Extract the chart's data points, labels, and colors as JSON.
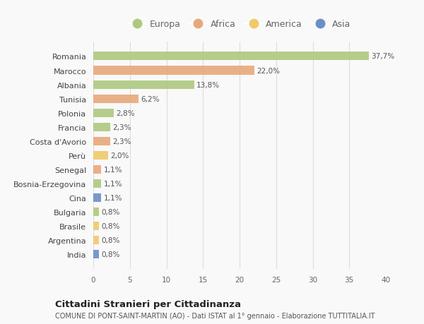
{
  "countries": [
    "Romania",
    "Marocco",
    "Albania",
    "Tunisia",
    "Polonia",
    "Francia",
    "Costa d'Avorio",
    "Perù",
    "Senegal",
    "Bosnia-Erzegovina",
    "Cina",
    "Bulgaria",
    "Brasile",
    "Argentina",
    "India"
  ],
  "values": [
    37.7,
    22.0,
    13.8,
    6.2,
    2.8,
    2.3,
    2.3,
    2.0,
    1.1,
    1.1,
    1.1,
    0.8,
    0.8,
    0.8,
    0.8
  ],
  "labels": [
    "37,7%",
    "22,0%",
    "13,8%",
    "6,2%",
    "2,8%",
    "2,3%",
    "2,3%",
    "2,0%",
    "1,1%",
    "1,1%",
    "1,1%",
    "0,8%",
    "0,8%",
    "0,8%",
    "0,8%"
  ],
  "continents": [
    "Europa",
    "Africa",
    "Europa",
    "Africa",
    "Europa",
    "Europa",
    "Africa",
    "America",
    "Africa",
    "Europa",
    "Asia",
    "Europa",
    "America",
    "America",
    "Asia"
  ],
  "continent_colors": {
    "Europa": "#aec97f",
    "Africa": "#e8a87c",
    "America": "#f0c96a",
    "Asia": "#6b8ec4"
  },
  "legend_labels": [
    "Europa",
    "Africa",
    "America",
    "Asia"
  ],
  "xlim": [
    0,
    40
  ],
  "xticks": [
    0,
    5,
    10,
    15,
    20,
    25,
    30,
    35,
    40
  ],
  "title": "Cittadini Stranieri per Cittadinanza",
  "subtitle": "COMUNE DI PONT-SAINT-MARTIN (AO) - Dati ISTAT al 1° gennaio - Elaborazione TUTTITALIA.IT",
  "bg_color": "#f9f9f9",
  "grid_color": "#dddddd"
}
